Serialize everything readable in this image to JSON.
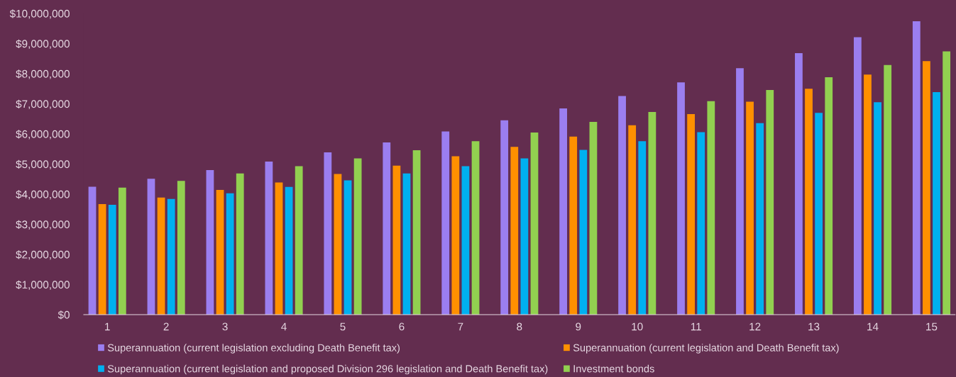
{
  "chart_data": {
    "type": "bar",
    "categories": [
      "1",
      "2",
      "3",
      "4",
      "5",
      "6",
      "7",
      "8",
      "9",
      "10",
      "11",
      "12",
      "13",
      "14",
      "15"
    ],
    "series": [
      {
        "name": "Superannuation (current legislation excluding Death Benefit tax)",
        "color": "#9b7ef0",
        "values": [
          4250000,
          4510000,
          4800000,
          5080000,
          5390000,
          5720000,
          6080000,
          6450000,
          6850000,
          7260000,
          7710000,
          8180000,
          8680000,
          9210000,
          9740000
        ]
      },
      {
        "name": "Superannuation (current legislation and Death Benefit tax)",
        "color": "#ff9000",
        "values": [
          3670000,
          3890000,
          4140000,
          4390000,
          4670000,
          4950000,
          5260000,
          5570000,
          5910000,
          6290000,
          6660000,
          7070000,
          7500000,
          7970000,
          8420000
        ]
      },
      {
        "name": "Superannuation (current legislation and proposed Division 296 legislation and Death Benefit tax)",
        "color": "#00b0f0",
        "values": [
          3650000,
          3840000,
          4030000,
          4240000,
          4460000,
          4690000,
          4930000,
          5190000,
          5470000,
          5760000,
          6060000,
          6360000,
          6700000,
          7050000,
          7390000
        ]
      },
      {
        "name": "Investment bonds",
        "color": "#92d050",
        "values": [
          4220000,
          4440000,
          4690000,
          4930000,
          5190000,
          5460000,
          5760000,
          6050000,
          6400000,
          6730000,
          7090000,
          7460000,
          7880000,
          8290000,
          8740000
        ]
      }
    ],
    "ylim": [
      0,
      10000000
    ],
    "yticks": [
      {
        "value": 0,
        "label": "$0"
      },
      {
        "value": 1000000,
        "label": "$1,000,000"
      },
      {
        "value": 2000000,
        "label": "$2,000,000"
      },
      {
        "value": 3000000,
        "label": "$3,000,000"
      },
      {
        "value": 4000000,
        "label": "$4,000,000"
      },
      {
        "value": 5000000,
        "label": "$5,000,000"
      },
      {
        "value": 6000000,
        "label": "$6,000,000"
      },
      {
        "value": 7000000,
        "label": "$7,000,000"
      },
      {
        "value": 8000000,
        "label": "$8,000,000"
      },
      {
        "value": 9000000,
        "label": "$9,000,000"
      },
      {
        "value": 10000000,
        "label": "$10,000,000"
      }
    ],
    "grid": false,
    "legend": "bottom"
  }
}
